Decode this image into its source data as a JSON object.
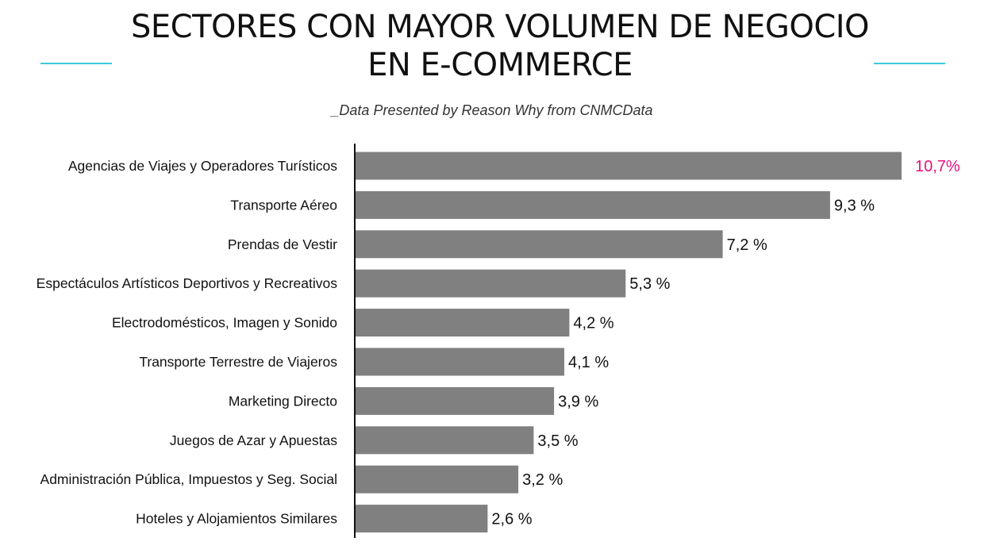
{
  "header": {
    "title_line1": "SECTORES CON MAYOR VOLUMEN DE NEGOCIO",
    "title_line2": "EN E-COMMERCE",
    "subtitle": "_Data Presented by Reason Why from CNMCData"
  },
  "colors": {
    "bar": "#808080",
    "highlight_label": "#e8117f",
    "accent_rule": "#3cc9dc",
    "axis": "#111111",
    "text": "#111111"
  },
  "chart_data": {
    "type": "bar",
    "orientation": "horizontal",
    "title": "SECTORES CON MAYOR VOLUMEN DE NEGOCIO EN E-COMMERCE",
    "xlabel": "",
    "ylabel": "",
    "grid": false,
    "xlim": [
      0,
      10.7
    ],
    "categories": [
      "Agencias de Viajes y Operadores Turísticos",
      "Transporte Aéreo",
      "Prendas de Vestir",
      "Espectáculos Artísticos Deportivos y Recreativos",
      "Electrodomésticos, Imagen y Sonido",
      "Transporte Terrestre de Viajeros",
      "Marketing Directo",
      "Juegos de Azar y Apuestas",
      "Administración Pública, Impuestos y Seg. Social",
      "Hoteles y Alojamientos Similares"
    ],
    "values": [
      10.7,
      9.3,
      7.2,
      5.3,
      4.2,
      4.1,
      3.9,
      3.5,
      3.2,
      2.6
    ],
    "value_labels": [
      "10,7%",
      "9,3 %",
      "7,2 %",
      "5,3 %",
      "4,2 %",
      "4,1 %",
      "3,9 %",
      "3,5 %",
      "3,2 %",
      "2,6 %"
    ],
    "highlight_index": 0
  }
}
